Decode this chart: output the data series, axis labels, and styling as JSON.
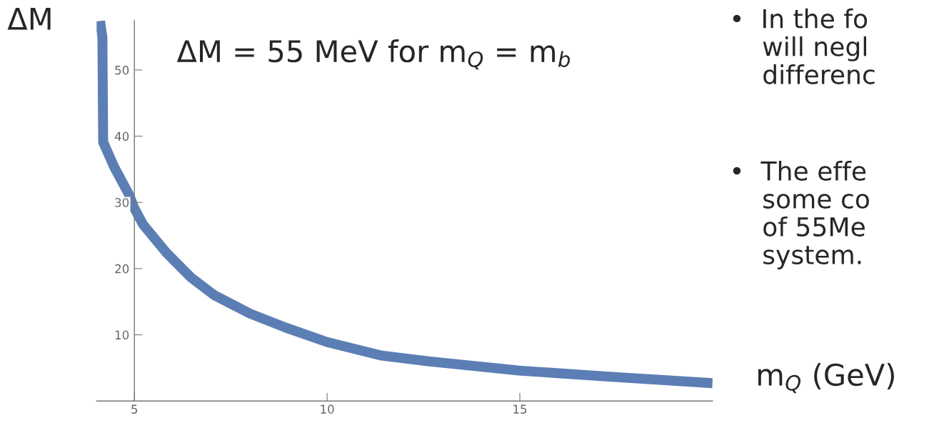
{
  "chart_data": {
    "type": "line",
    "xlabel": "m$_{Q}$ (GeV)",
    "ylabel": "ΔM",
    "x": [
      4.11,
      4.17,
      4.19,
      4.48,
      4.85,
      5.0,
      5.22,
      5.83,
      6.46,
      7.07,
      8.0,
      8.92,
      10.0,
      11.38,
      12.62,
      14.98,
      17.24,
      20.0
    ],
    "series": [
      {
        "color": "#5b7fb4",
        "values": [
          57.4,
          54.9,
          39.1,
          35.3,
          31.3,
          29.1,
          26.7,
          22.4,
          18.7,
          16.0,
          13.2,
          11.1,
          8.9,
          6.9,
          6.0,
          4.6,
          3.7,
          2.7
        ]
      }
    ],
    "xlim": [
      4.02,
      20.0
    ],
    "ylim": [
      0,
      57.5
    ],
    "xticks": [
      5,
      10,
      15
    ],
    "yticks": [
      10,
      20,
      30,
      40,
      50
    ],
    "grid": false,
    "marker": "none",
    "line_style": "solid",
    "annotations": [
      "ΔM = 55 MeV for m$_{Q}$ = m$_{b}$",
      "•  In the fo\n    will negl\n    differenc",
      "•  The effe\n    some co\n    of 55Me\n    system."
    ]
  }
}
